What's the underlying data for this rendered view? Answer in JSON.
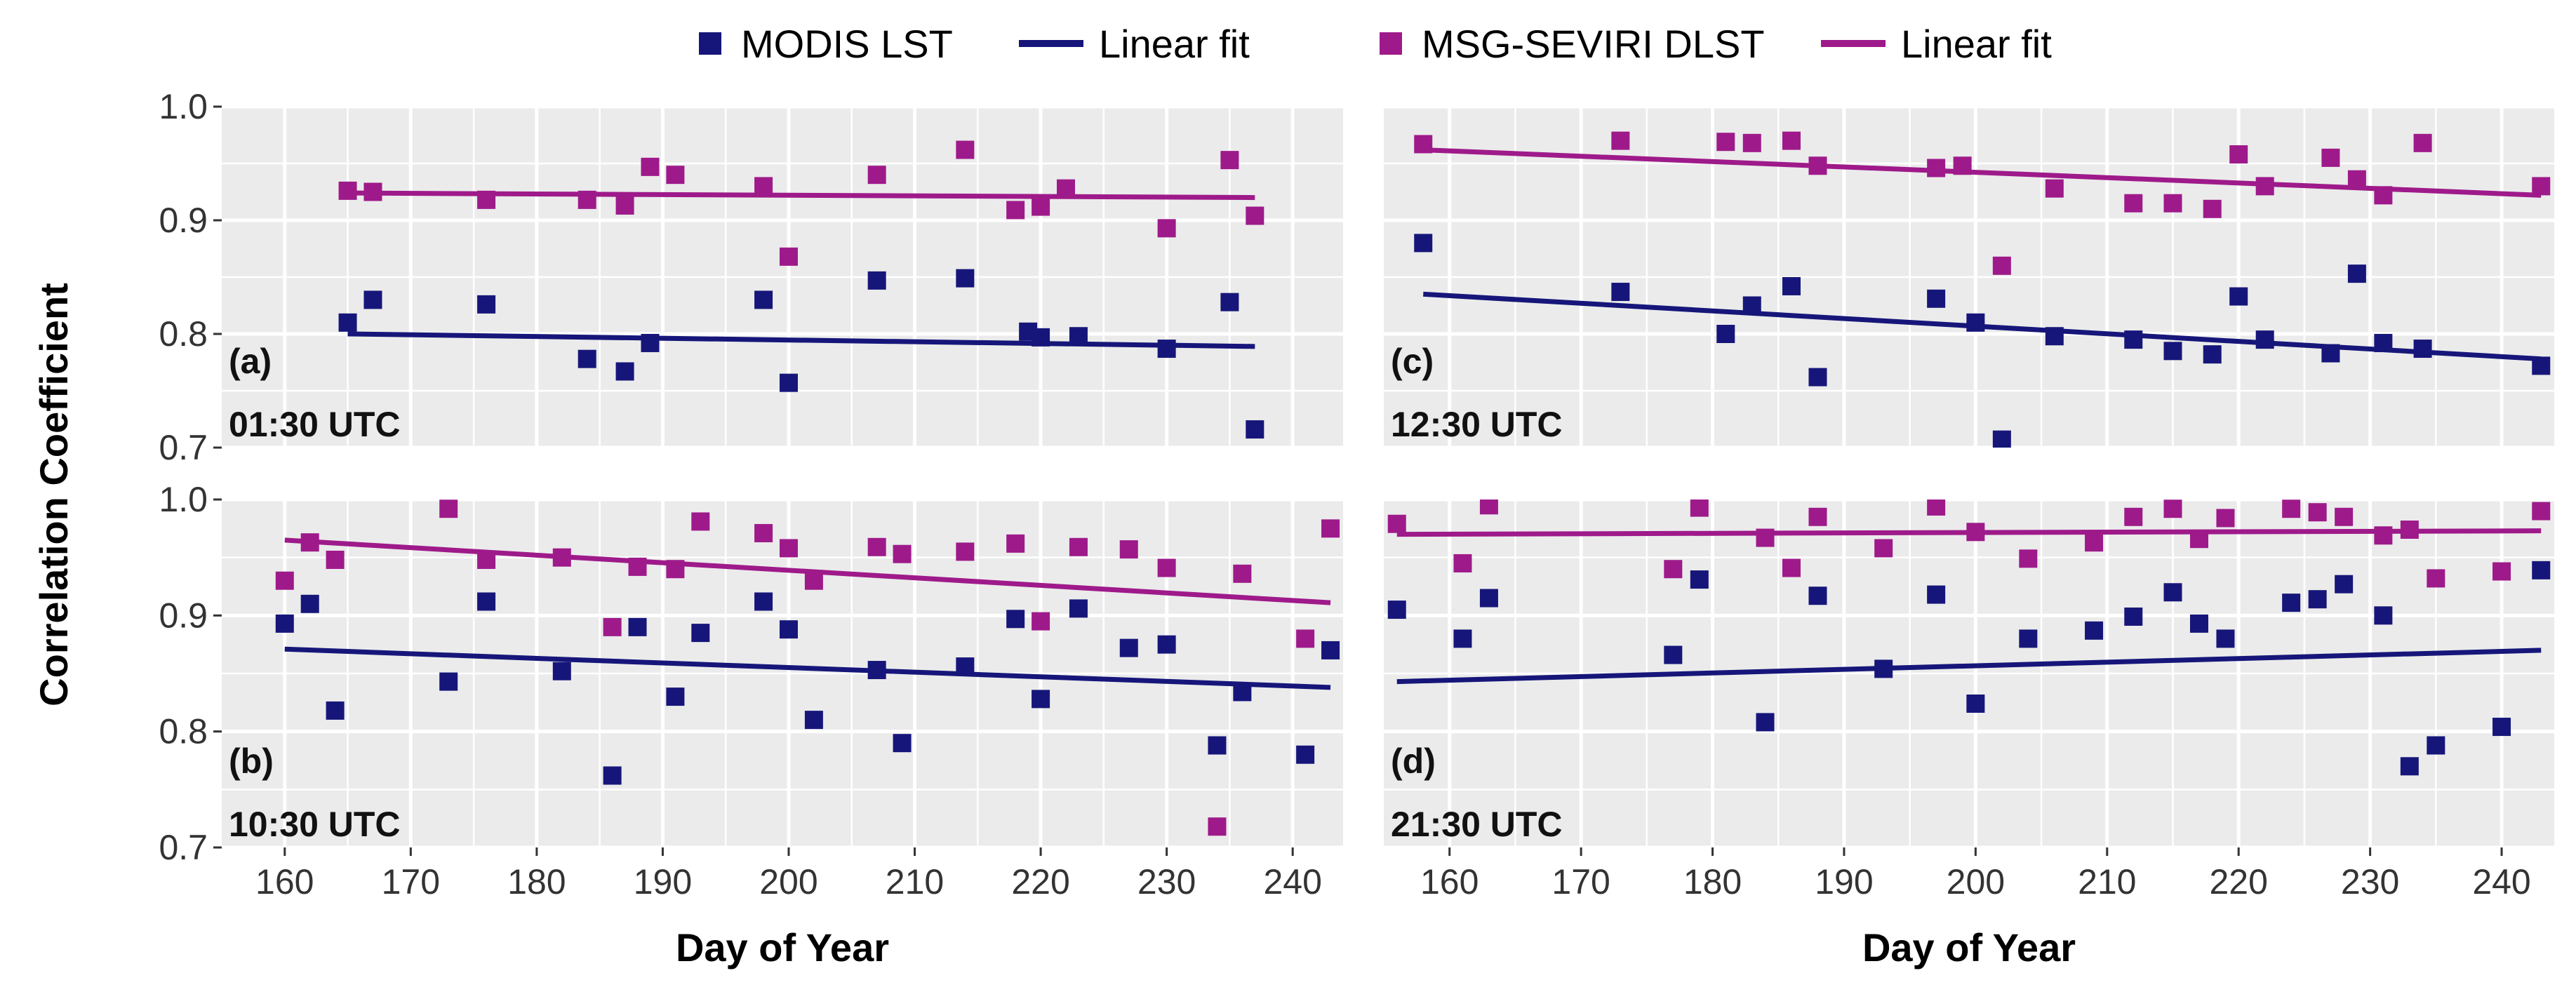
{
  "colors": {
    "modis": "#16167a",
    "seviri": "#9e1a8a",
    "panel": "#ebebeb",
    "grid": "#ffffff"
  },
  "legend": [
    {
      "kind": "marker",
      "series": "modis",
      "label": "MODIS LST"
    },
    {
      "kind": "line",
      "series": "modis",
      "label": "Linear fit"
    },
    {
      "kind": "marker",
      "series": "seviri",
      "label": "MSG-SEVIRI DLST"
    },
    {
      "kind": "line",
      "series": "seviri",
      "label": "Linear fit"
    }
  ],
  "ylabel": "Correlation Coefficient",
  "xlabel": "Day of Year",
  "chart_data": [
    {
      "type": "scatter",
      "id": "a",
      "title": "(a)",
      "subtitle": "01:30 UTC",
      "xlim": [
        155,
        244
      ],
      "ylim": [
        0.7,
        1.0
      ],
      "xticks": [
        160,
        170,
        180,
        190,
        200,
        210,
        220,
        230,
        240
      ],
      "yticks": [
        0.7,
        0.8,
        0.9,
        1.0
      ],
      "ytick_labels": [
        "0.7",
        "0.8",
        "0.9",
        "1.0"
      ],
      "series": [
        {
          "name": "MODIS LST",
          "key": "modis",
          "x": [
            165,
            167,
            176,
            184,
            187,
            189,
            198,
            200,
            207,
            214,
            219,
            220,
            223,
            230,
            235,
            237
          ],
          "y": [
            0.81,
            0.83,
            0.826,
            0.778,
            0.767,
            0.792,
            0.83,
            0.757,
            0.847,
            0.849,
            0.802,
            0.797,
            0.798,
            0.787,
            0.828,
            0.716
          ],
          "fit": {
            "x": [
              165,
              237
            ],
            "y": [
              0.8,
              0.789
            ]
          }
        },
        {
          "name": "MSG-SEVIRI DLST",
          "key": "seviri",
          "x": [
            165,
            167,
            176,
            184,
            187,
            189,
            191,
            198,
            200,
            207,
            214,
            218,
            220,
            222,
            230,
            235,
            237
          ],
          "y": [
            0.926,
            0.925,
            0.918,
            0.918,
            0.913,
            0.947,
            0.94,
            0.93,
            0.868,
            0.94,
            0.962,
            0.909,
            0.912,
            0.928,
            0.893,
            0.953,
            0.904
          ],
          "fit": {
            "x": [
              165,
              237
            ],
            "y": [
              0.924,
              0.92
            ]
          }
        }
      ]
    },
    {
      "type": "scatter",
      "id": "c",
      "title": "(c)",
      "subtitle": "12:30 UTC",
      "xlim": [
        155,
        244
      ],
      "ylim": [
        0.7,
        1.0
      ],
      "xticks": [
        160,
        170,
        180,
        190,
        200,
        210,
        220,
        230,
        240
      ],
      "yticks": [
        0.7,
        0.8,
        0.9,
        1.0
      ],
      "ytick_labels": [
        "0.7",
        "0.8",
        "0.9",
        "1.0"
      ],
      "series": [
        {
          "name": "MODIS LST",
          "key": "modis",
          "x": [
            158,
            173,
            181,
            183,
            186,
            188,
            197,
            200,
            202,
            206,
            212,
            215,
            218,
            220,
            222,
            227,
            229,
            231,
            234,
            243
          ],
          "y": [
            0.88,
            0.837,
            0.8,
            0.825,
            0.842,
            0.762,
            0.831,
            0.81,
            0.707,
            0.798,
            0.795,
            0.785,
            0.782,
            0.833,
            0.795,
            0.783,
            0.853,
            0.792,
            0.787,
            0.772
          ],
          "fit": {
            "x": [
              158,
              243
            ],
            "y": [
              0.835,
              0.778
            ]
          }
        },
        {
          "name": "MSG-SEVIRI DLST",
          "key": "seviri",
          "x": [
            158,
            173,
            181,
            183,
            186,
            188,
            197,
            199,
            202,
            206,
            212,
            215,
            218,
            220,
            222,
            227,
            229,
            231,
            234,
            243
          ],
          "y": [
            0.967,
            0.97,
            0.969,
            0.968,
            0.97,
            0.948,
            0.946,
            0.948,
            0.86,
            0.928,
            0.915,
            0.915,
            0.91,
            0.958,
            0.93,
            0.955,
            0.936,
            0.922,
            0.968,
            0.93
          ],
          "fit": {
            "x": [
              158,
              243
            ],
            "y": [
              0.962,
              0.922
            ]
          }
        }
      ]
    },
    {
      "type": "scatter",
      "id": "b",
      "title": "(b)",
      "subtitle": "10:30 UTC",
      "xlim": [
        155,
        244
      ],
      "ylim": [
        0.7,
        1.0
      ],
      "xticks": [
        160,
        170,
        180,
        190,
        200,
        210,
        220,
        230,
        240
      ],
      "yticks": [
        0.7,
        0.8,
        0.9,
        1.0
      ],
      "ytick_labels": [
        "0.7",
        "0.8",
        "0.9",
        "1.0"
      ],
      "series": [
        {
          "name": "MODIS LST",
          "key": "modis",
          "x": [
            160,
            162,
            164,
            173,
            176,
            182,
            186,
            188,
            191,
            193,
            198,
            200,
            202,
            207,
            209,
            214,
            218,
            220,
            223,
            227,
            230,
            234,
            236,
            241,
            243
          ],
          "y": [
            0.893,
            0.91,
            0.818,
            0.843,
            0.912,
            0.852,
            0.762,
            0.89,
            0.83,
            0.885,
            0.912,
            0.888,
            0.81,
            0.853,
            0.79,
            0.856,
            0.897,
            0.828,
            0.906,
            0.872,
            0.875,
            0.788,
            0.834,
            0.78,
            0.87
          ],
          "fit": {
            "x": [
              160,
              243
            ],
            "y": [
              0.871,
              0.838
            ]
          }
        },
        {
          "name": "MSG-SEVIRI DLST",
          "key": "seviri",
          "x": [
            160,
            162,
            164,
            173,
            176,
            182,
            186,
            188,
            191,
            193,
            198,
            200,
            202,
            207,
            209,
            214,
            218,
            220,
            223,
            227,
            230,
            234,
            236,
            241,
            243
          ],
          "y": [
            0.93,
            0.963,
            0.948,
            0.992,
            0.948,
            0.95,
            0.89,
            0.942,
            0.94,
            0.981,
            0.971,
            0.958,
            0.93,
            0.959,
            0.953,
            0.955,
            0.962,
            0.895,
            0.959,
            0.957,
            0.941,
            0.718,
            0.936,
            0.88,
            0.975
          ],
          "fit": {
            "x": [
              160,
              243
            ],
            "y": [
              0.965,
              0.911
            ]
          }
        }
      ]
    },
    {
      "type": "scatter",
      "id": "d",
      "title": "(d)",
      "subtitle": "21:30 UTC",
      "xlim": [
        155,
        244
      ],
      "ylim": [
        0.7,
        1.0
      ],
      "xticks": [
        160,
        170,
        180,
        190,
        200,
        210,
        220,
        230,
        240
      ],
      "yticks": [
        0.7,
        0.8,
        0.9,
        1.0
      ],
      "ytick_labels": [
        "0.7",
        "0.8",
        "0.9",
        "1.0"
      ],
      "series": [
        {
          "name": "MODIS LST",
          "key": "modis",
          "x": [
            156,
            161,
            163,
            177,
            179,
            184,
            188,
            193,
            197,
            200,
            204,
            209,
            212,
            215,
            217,
            219,
            224,
            226,
            228,
            231,
            233,
            235,
            240,
            243
          ],
          "y": [
            0.905,
            0.88,
            0.915,
            0.866,
            0.931,
            0.808,
            0.917,
            0.854,
            0.918,
            0.824,
            0.88,
            0.887,
            0.899,
            0.92,
            0.893,
            0.88,
            0.911,
            0.914,
            0.927,
            0.9,
            0.77,
            0.788,
            0.804,
            0.939
          ],
          "fit": {
            "x": [
              156,
              243
            ],
            "y": [
              0.843,
              0.87
            ]
          }
        },
        {
          "name": "MSG-SEVIRI DLST",
          "key": "seviri",
          "x": [
            156,
            161,
            163,
            177,
            179,
            184,
            186,
            188,
            193,
            197,
            200,
            204,
            209,
            212,
            215,
            217,
            219,
            224,
            226,
            228,
            231,
            233,
            235,
            240,
            243
          ],
          "y": [
            0.979,
            0.945,
            0.995,
            0.94,
            0.993,
            0.967,
            0.941,
            0.985,
            0.958,
            0.994,
            0.972,
            0.949,
            0.963,
            0.985,
            0.992,
            0.966,
            0.984,
            0.992,
            0.989,
            0.985,
            0.969,
            0.974,
            0.932,
            0.938,
            0.99
          ],
          "fit": {
            "x": [
              156,
              243
            ],
            "y": [
              0.97,
              0.973
            ]
          }
        }
      ]
    }
  ]
}
